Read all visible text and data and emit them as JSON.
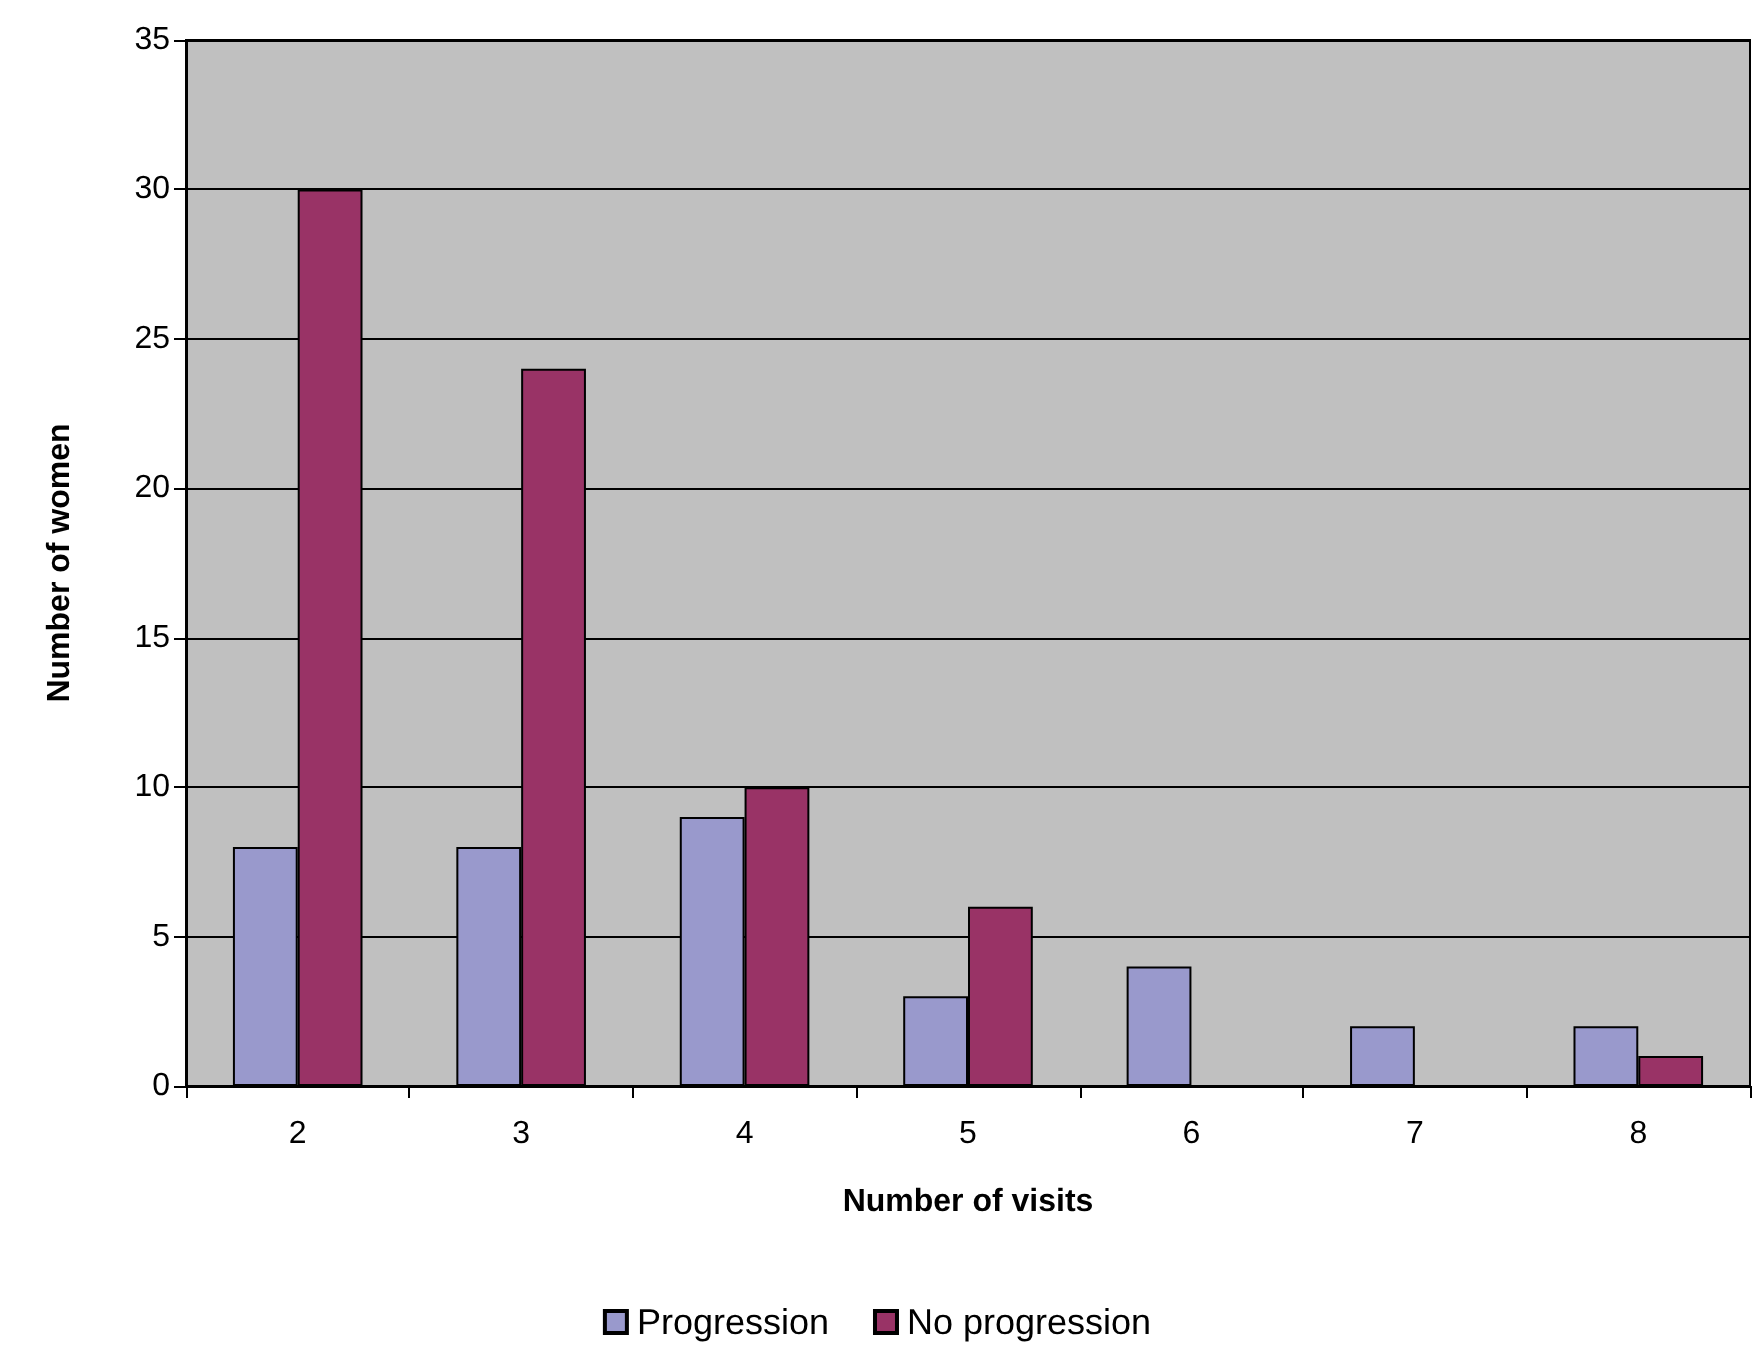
{
  "chart_data": {
    "type": "bar",
    "xlabel": "Number of visits",
    "ylabel": "Number of women",
    "categories": [
      "2",
      "3",
      "4",
      "5",
      "6",
      "7",
      "8"
    ],
    "series": [
      {
        "name": "Progression",
        "color": "#9999cc",
        "values": [
          8,
          8,
          9,
          3,
          4,
          2,
          2
        ]
      },
      {
        "name": "No progression",
        "color": "#993366",
        "values": [
          30,
          24,
          10,
          6,
          null,
          null,
          1
        ]
      }
    ],
    "ylim": [
      0,
      35
    ],
    "yticks": [
      0,
      5,
      10,
      15,
      20,
      25,
      30,
      35
    ],
    "grid": "y",
    "legend": "bottom"
  }
}
